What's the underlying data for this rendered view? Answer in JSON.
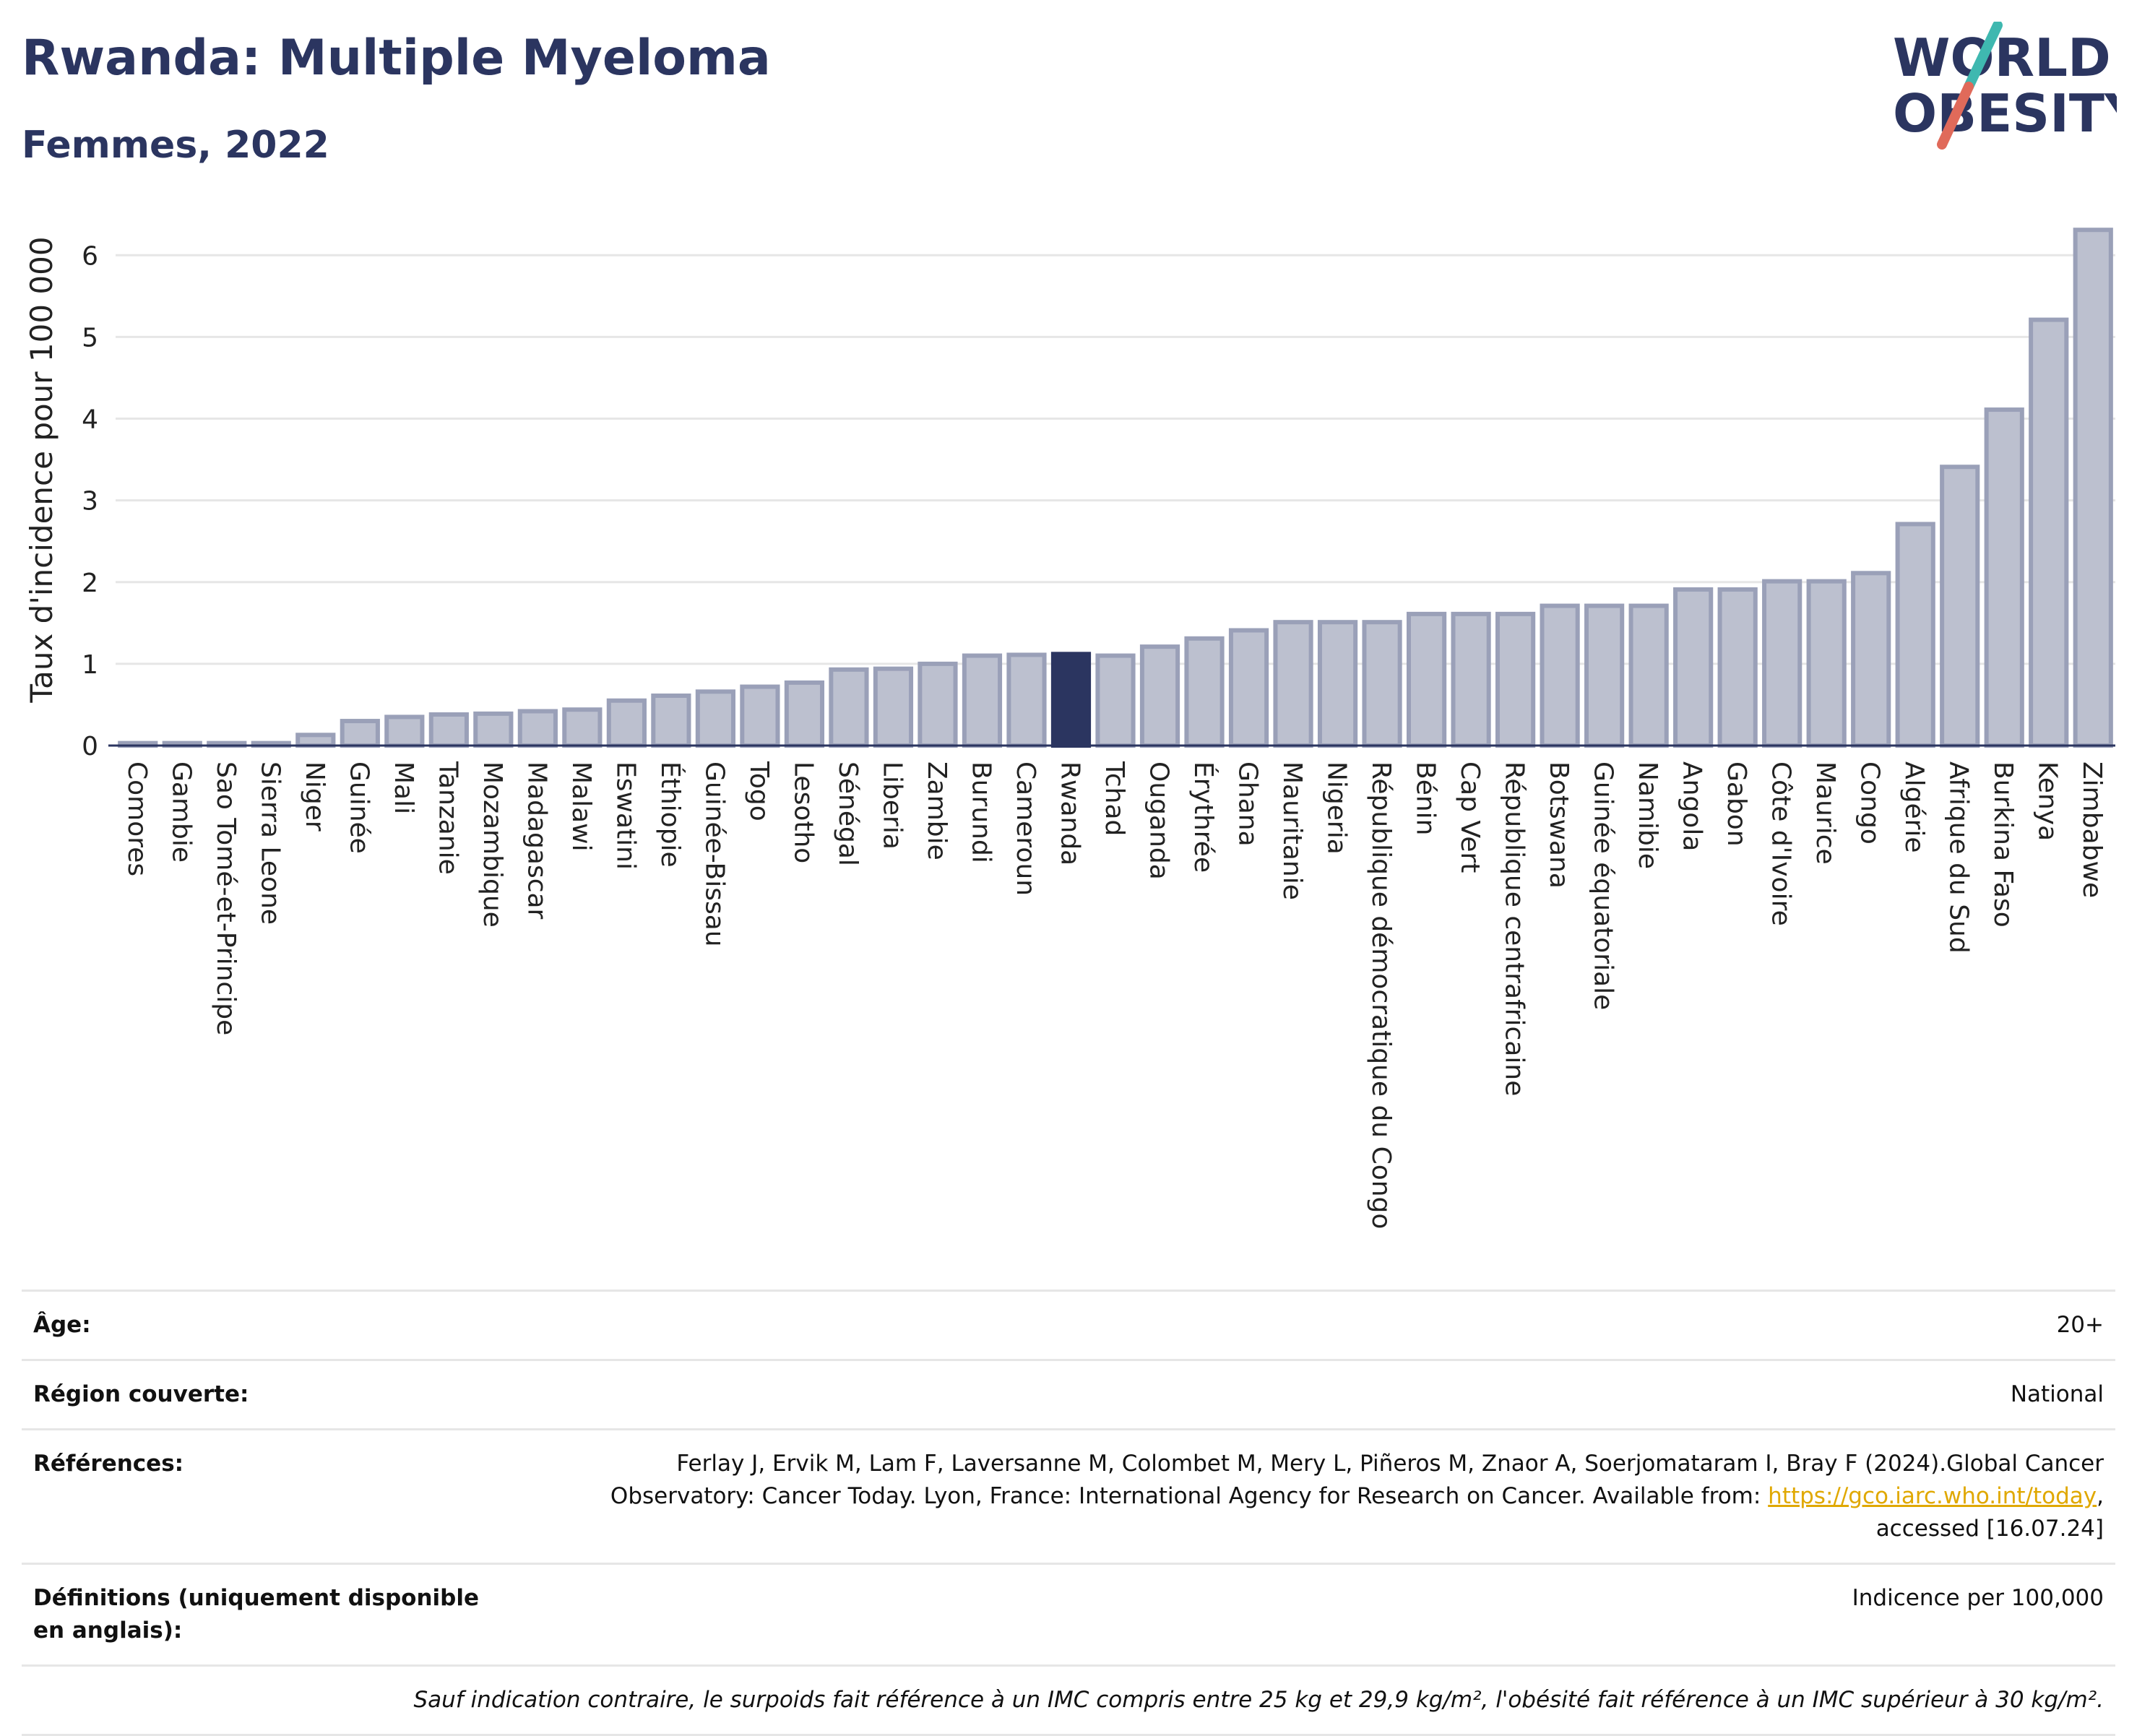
{
  "header": {
    "title": "Rwanda: Multiple Myeloma",
    "subtitle": "Femmes, 2022",
    "logo_line1": "WORLD",
    "logo_line2": "OBESITY"
  },
  "colors": {
    "bar": "#bcc0cf",
    "bar_border": "#9aa0b8",
    "highlight": "#2b3560",
    "grid": "#e6e6e6",
    "logo_teal": "#3fb8b0",
    "logo_coral": "#e06a5a"
  },
  "chart_data": {
    "type": "bar",
    "ylabel": "Taux d'incidence pour 100 000",
    "ylim": [
      0,
      6.4
    ],
    "yticks": [
      0,
      1,
      2,
      3,
      4,
      5,
      6
    ],
    "grid": true,
    "highlight": "Rwanda",
    "categories": [
      "Comores",
      "Gambie",
      "Sao Tomé-et-Principe",
      "Sierra Leone",
      "Niger",
      "Guinée",
      "Mali",
      "Tanzanie",
      "Mozambique",
      "Madagascar",
      "Malawi",
      "Eswatini",
      "Éthiopie",
      "Guinée-Bissau",
      "Togo",
      "Lesotho",
      "Sénégal",
      "Liberia",
      "Zambie",
      "Burundi",
      "Cameroun",
      "Rwanda",
      "Tchad",
      "Ouganda",
      "Érythrée",
      "Ghana",
      "Mauritanie",
      "Nigeria",
      "République démocratique du Congo",
      "Bénin",
      "Cap Vert",
      "République centrafricaine",
      "Botswana",
      "Guinée équatoriale",
      "Namibie",
      "Angola",
      "Gabon",
      "Côte d'Ivoire",
      "Maurice",
      "Congo",
      "Algérie",
      "Afrique du Sud",
      "Burkina Faso",
      "Kenya",
      "Zimbabwe"
    ],
    "values": [
      0.03,
      0.03,
      0.03,
      0.03,
      0.13,
      0.3,
      0.35,
      0.38,
      0.39,
      0.42,
      0.44,
      0.55,
      0.61,
      0.66,
      0.72,
      0.77,
      0.93,
      0.94,
      1.0,
      1.1,
      1.11,
      1.12,
      1.1,
      1.21,
      1.31,
      1.41,
      1.51,
      1.51,
      1.51,
      1.61,
      1.61,
      1.61,
      1.71,
      1.71,
      1.71,
      1.91,
      1.91,
      2.01,
      2.01,
      2.11,
      2.71,
      3.41,
      4.11,
      5.21,
      6.31
    ]
  },
  "info_table": {
    "age_label": "Âge:",
    "age_value": "20+",
    "region_label": "Région couverte:",
    "region_value": "National",
    "refs_label": "Références:",
    "refs_text_1": "Ferlay J, Ervik M, Lam F, Laversanne M, Colombet M, Mery L, Piñeros M, Znaor A, Soerjomataram I, Bray F (2024).Global Cancer Observatory: Cancer Today. Lyon, France: International Agency for Research on Cancer. Available from: ",
    "refs_link": "https://gco.iarc.who.int/today",
    "refs_text_2": ", accessed [16.07.24]",
    "defs_label": "Définitions (uniquement disponible en anglais):",
    "defs_value": "Indicence per 100,000",
    "footnote": "Sauf indication contraire, le surpoids fait référence à un IMC compris entre 25 kg et 29,9 kg/m², l'obésité fait référence à un IMC supérieur à 30 kg/m²."
  }
}
